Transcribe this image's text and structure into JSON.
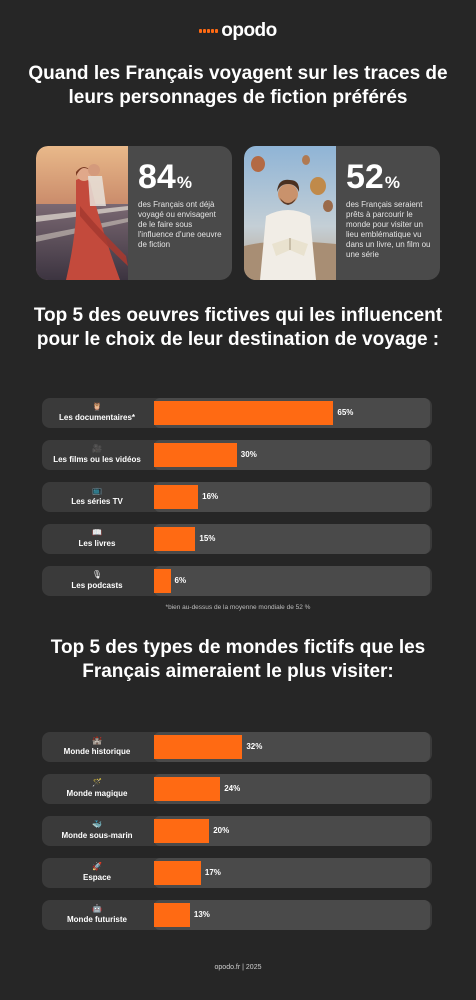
{
  "logo": {
    "text": "opodo"
  },
  "main_title": "Quand les Français voyagent sur les traces de leurs personnages de fiction préférés",
  "stats": [
    {
      "value": "84",
      "unit": "%",
      "description": "des Français ont déjà voyagé ou envisagent de le faire sous l'influence d'une oeuvre de fiction"
    },
    {
      "value": "52",
      "unit": "%",
      "description": "des Français seraient prêts à parcourir le monde pour visiter un lieu emblématique vu dans un livre, un film ou une série"
    }
  ],
  "chart_data": [
    {
      "type": "bar",
      "orientation": "horizontal",
      "title": "Top 5 des oeuvres fictives qui les influencent pour le choix de leur destination de voyage :",
      "categories": [
        "Les documentaires*",
        "Les films ou les vidéos",
        "Les séries TV",
        "Les livres",
        "Les podcasts"
      ],
      "values": [
        65,
        30,
        16,
        15,
        6
      ],
      "value_labels": [
        "65%",
        "30%",
        "16%",
        "15%",
        "6%"
      ],
      "icons": [
        "🦉",
        "🎥",
        "📺",
        "📖",
        "🎙"
      ],
      "xlim": [
        0,
        100
      ],
      "bar_color": "#ff6a13",
      "track_color": "#4a4a4a",
      "footnote": "*bien au-dessus de la moyenne mondiale de 52 %"
    },
    {
      "type": "bar",
      "orientation": "horizontal",
      "title": "Top 5 des types de mondes fictifs que les Français aimeraient le plus visiter:",
      "categories": [
        "Monde historique",
        "Monde magique",
        "Monde sous-marin",
        "Espace",
        "Monde futuriste"
      ],
      "values": [
        32,
        24,
        20,
        17,
        13
      ],
      "value_labels": [
        "32%",
        "24%",
        "20%",
        "17%",
        "13%"
      ],
      "icons": [
        "🏰",
        "🪄",
        "🐳",
        "🚀",
        "🤖"
      ],
      "xlim": [
        0,
        100
      ],
      "bar_color": "#ff6a13",
      "track_color": "#4a4a4a"
    }
  ],
  "footer": "opodo.fr | 2025"
}
